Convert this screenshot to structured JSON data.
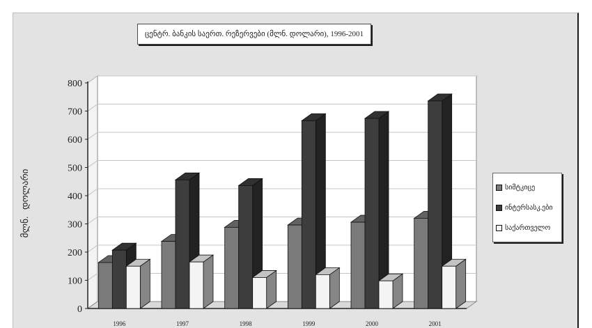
{
  "chart_data": {
    "type": "bar",
    "title": "ცენტრ. ბანკის საერთ. რეზერვები (მლნ. დოლარი), 1996-2001",
    "ylabel": "მლნ.   დოლარი",
    "xlabel": "",
    "categories": [
      "1996",
      "1997",
      "1998",
      "1999",
      "2000",
      "2001"
    ],
    "series": [
      {
        "name": "სიმტკიცე",
        "color": "#7a7a7a",
        "values": [
          163,
          238,
          288,
          296,
          306,
          320
        ]
      },
      {
        "name": "ინტერსასკ.ები",
        "color": "#3d3d3d",
        "values": [
          207,
          456,
          436,
          666,
          674,
          736
        ]
      },
      {
        "name": "საქართველო",
        "color": "#f4f4f4",
        "values": [
          150,
          165,
          110,
          120,
          98,
          150
        ]
      }
    ],
    "ylim": [
      0,
      800
    ],
    "yticks": [
      0,
      100,
      200,
      300,
      400,
      500,
      600,
      700,
      800
    ],
    "grid": true,
    "legend": "right",
    "bar_3d": true
  }
}
